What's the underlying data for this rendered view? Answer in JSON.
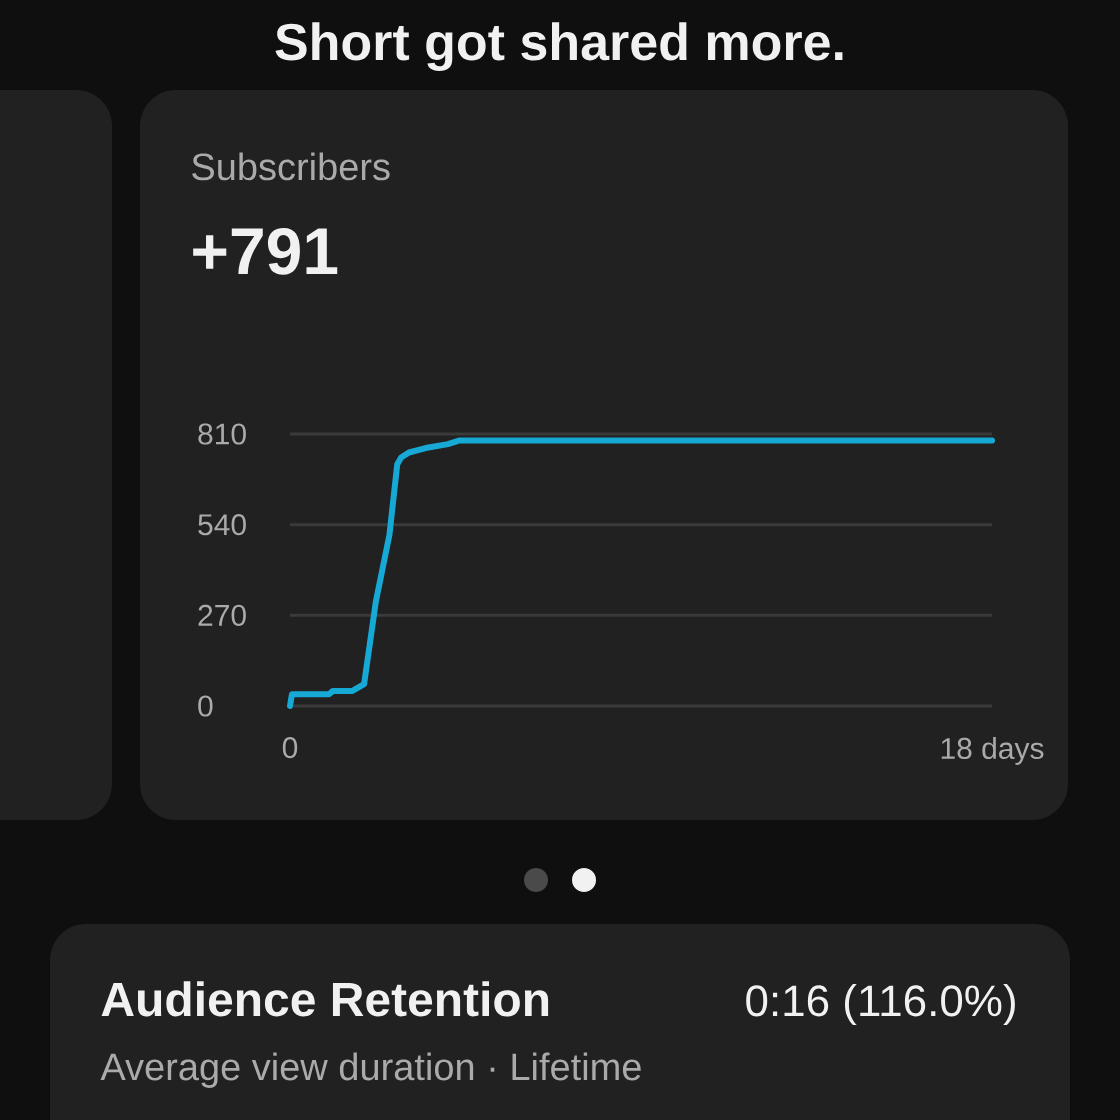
{
  "chart_data": [
    {
      "type": "line",
      "annotations": [
        "Short got shared more."
      ],
      "title": "Subscribers",
      "subtitle": "+791",
      "x": [
        0,
        0.05,
        1.0,
        1.1,
        1.6,
        1.9,
        2.2,
        2.55,
        2.75,
        2.85,
        3.05,
        3.55,
        4.05,
        4.35,
        18
      ],
      "series": [
        {
          "color": "#17a9d6",
          "values": [
            0,
            35,
            35,
            45,
            45,
            65,
            310,
            510,
            720,
            740,
            755,
            770,
            780,
            791,
            791
          ]
        }
      ],
      "xlim": [
        0,
        18
      ],
      "ylim": [
        0,
        810
      ],
      "xticks": [
        0,
        {
          "value": 18,
          "label": "18 days"
        }
      ],
      "yticks": [
        0,
        270,
        540,
        810
      ],
      "grid": "y"
    },
    {
      "type": "other",
      "title": "Audience Retention",
      "subtitle": "Average view duration · Lifetime",
      "annotations": [
        "0:16 (116.0%)"
      ]
    }
  ]
}
